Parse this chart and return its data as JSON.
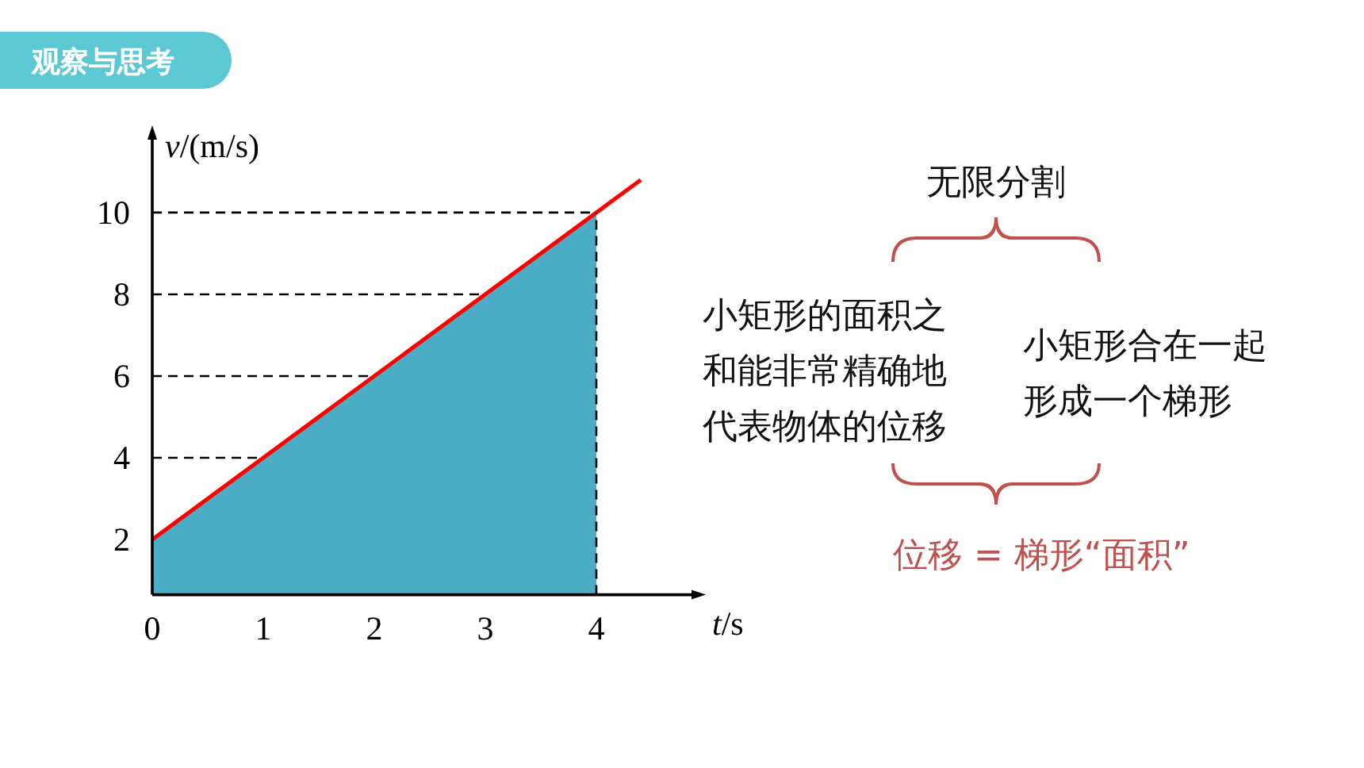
{
  "chart_data": {
    "type": "line",
    "title": "观察与思考",
    "xlabel": "t/s",
    "ylabel": "v/(m/s)",
    "series": [
      {
        "type": "area",
        "color": "#4bacc6",
        "x": [
          0,
          4
        ],
        "values": [
          2,
          10
        ]
      },
      {
        "color": "#ff0000",
        "x": [
          0,
          4.4
        ],
        "values": [
          2,
          10.8
        ]
      }
    ],
    "xlim": [
      0,
      4.9
    ],
    "ylim": [
      0.65,
      11.9
    ],
    "xticks": [
      0,
      1,
      2,
      3,
      4
    ],
    "yticks": [
      2,
      4,
      6,
      8,
      10
    ],
    "ref_lines": [
      {
        "axis": "y",
        "value": 4,
        "line_style": "dashed",
        "color": "#000000"
      },
      {
        "axis": "y",
        "value": 6,
        "line_style": "dashed",
        "color": "#000000"
      },
      {
        "axis": "y",
        "value": 8,
        "line_style": "dashed",
        "color": "#000000"
      },
      {
        "axis": "y",
        "value": 10,
        "line_style": "dashed",
        "color": "#000000"
      },
      {
        "axis": "x",
        "value": 4,
        "line_style": "dashed",
        "color": "#000000"
      }
    ],
    "annotations": [
      "无限分割",
      "小矩形的面积之和能非常精确地代表物体的位移",
      "小矩形合在一起形成一个梯形",
      "位移 = 梯形“面积”"
    ],
    "grid": false
  }
}
